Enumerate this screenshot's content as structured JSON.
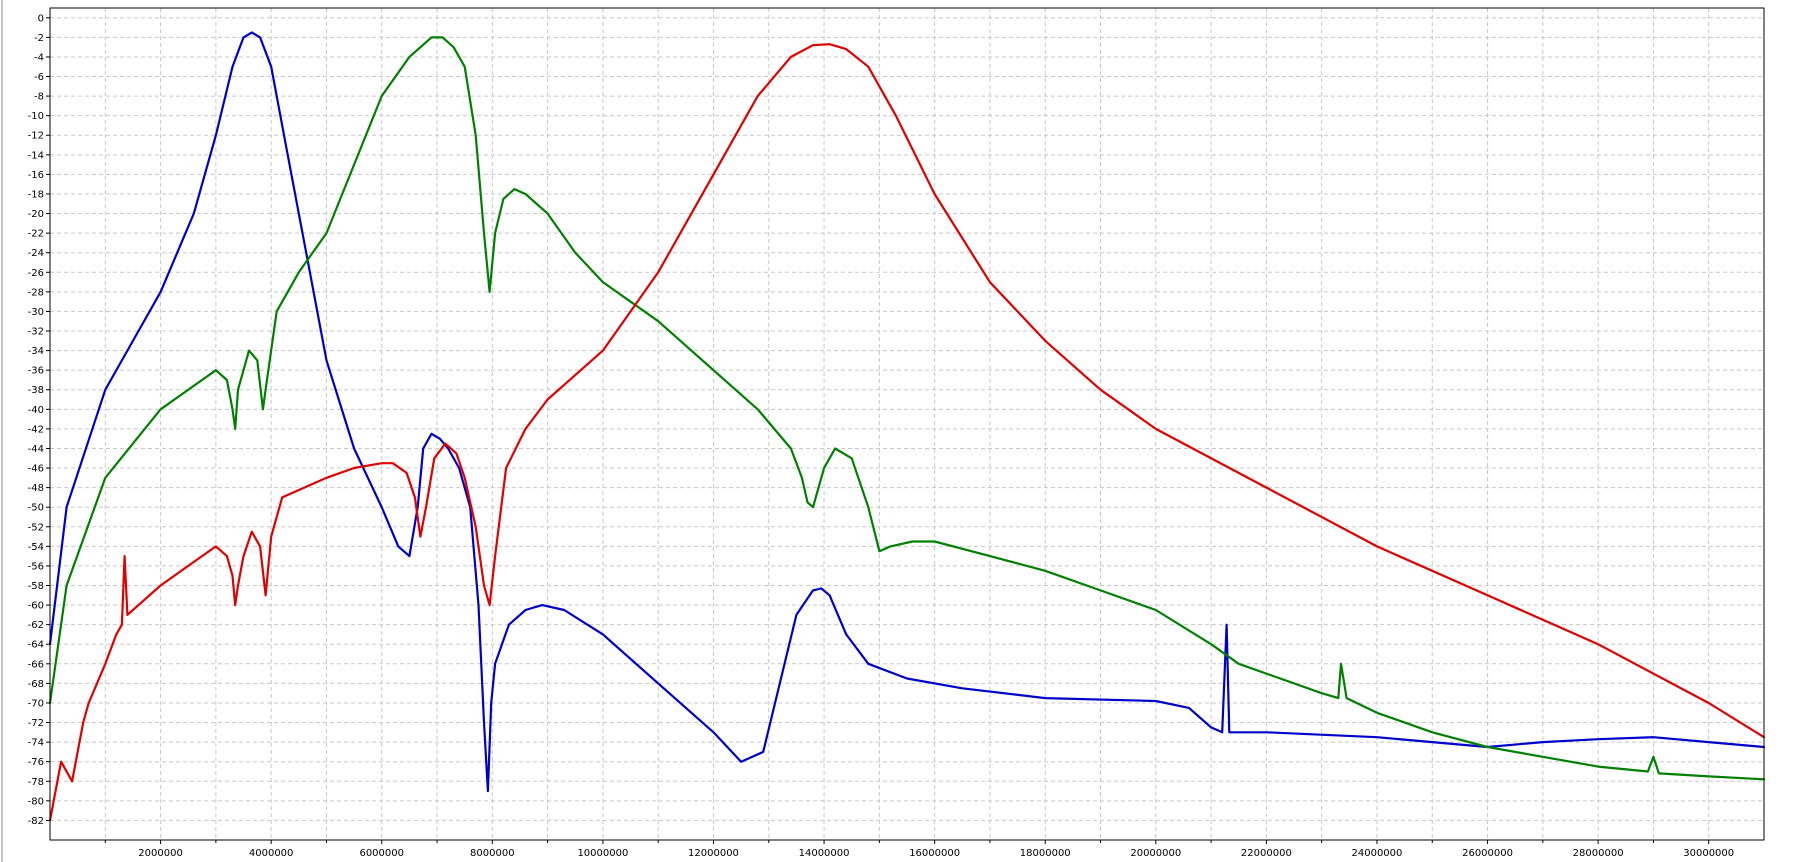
{
  "chart_data": {
    "type": "line",
    "title": "",
    "xlabel": "",
    "ylabel": "",
    "xlim": [
      0,
      31000000
    ],
    "ylim": [
      -84,
      1
    ],
    "grid": true,
    "x_ticks": [
      2000000,
      4000000,
      6000000,
      8000000,
      10000000,
      12000000,
      14000000,
      16000000,
      18000000,
      20000000,
      22000000,
      24000000,
      26000000,
      28000000,
      30000000
    ],
    "x_tick_labels": [
      "2000000",
      "4000000",
      "6000000",
      "8000000",
      "10000000",
      "12000000",
      "14000000",
      "16000000",
      "18000000",
      "20000000",
      "22000000",
      "24000000",
      "26000000",
      "28000000",
      "30000000"
    ],
    "y_ticks": [
      0,
      -2,
      -4,
      -6,
      -8,
      -10,
      -12,
      -14,
      -16,
      -18,
      -20,
      -22,
      -24,
      -26,
      -28,
      -30,
      -32,
      -34,
      -36,
      -38,
      -40,
      -42,
      -44,
      -46,
      -48,
      -50,
      -52,
      -54,
      -56,
      -58,
      -60,
      -62,
      -64,
      -66,
      -68,
      -70,
      -72,
      -74,
      -76,
      -78,
      -80,
      -82
    ],
    "y_tick_labels": [
      "0",
      "-2",
      "-4",
      "-6",
      "-8",
      "-10",
      "-12",
      "-14",
      "-16",
      "-18",
      "-20",
      "-22",
      "-24",
      "-26",
      "-28",
      "-30",
      "-32",
      "-34",
      "-36",
      "-38",
      "-40",
      "-42",
      "-44",
      "-46",
      "-48",
      "-50",
      "-52",
      "-54",
      "-56",
      "-58",
      "-60",
      "-62",
      "-64",
      "-66",
      "-68",
      "-70",
      "-72",
      "-74",
      "-76",
      "-78",
      "-80",
      "-82"
    ],
    "series": [
      {
        "color": "#0000cc",
        "x": [
          0,
          300000,
          1000000,
          2000000,
          2600000,
          3000000,
          3300000,
          3500000,
          3650000,
          3800000,
          4000000,
          4300000,
          4700000,
          5000000,
          5500000,
          6000000,
          6300000,
          6500000,
          6650000,
          6750000,
          6900000,
          7050000,
          7200000,
          7400000,
          7600000,
          7750000,
          7850000,
          7920000,
          7980000,
          8050000,
          8300000,
          8600000,
          8900000,
          9300000,
          10000000,
          11000000,
          12000000,
          12500000,
          12900000,
          13200000,
          13500000,
          13800000,
          13950000,
          14100000,
          14400000,
          14800000,
          15500000,
          16500000,
          18000000,
          20000000,
          20600000,
          21000000,
          21200000,
          21280000,
          21330000,
          21400000,
          22000000,
          24000000,
          25000000,
          26000000,
          27000000,
          28000000,
          29000000,
          30000000,
          31000000
        ],
        "y": [
          -64,
          -50,
          -38,
          -28,
          -20,
          -12,
          -5,
          -2,
          -1.5,
          -2,
          -5,
          -14,
          -26,
          -35,
          -44,
          -50,
          -54,
          -55,
          -50,
          -44,
          -42.5,
          -43,
          -44,
          -46,
          -50,
          -60,
          -72,
          -79,
          -70,
          -66,
          -62,
          -60.5,
          -60,
          -60.5,
          -63,
          -68,
          -73,
          -76,
          -75,
          -68,
          -61,
          -58.5,
          -58.3,
          -59,
          -63,
          -66,
          -67.5,
          -68.5,
          -69.5,
          -69.8,
          -70.5,
          -72.5,
          -73,
          -62,
          -73,
          -73,
          -73,
          -73.5,
          -74,
          -74.5,
          -74,
          -73.7,
          -73.5,
          -74,
          -74.5
        ]
      },
      {
        "color": "#008000",
        "x": [
          0,
          300000,
          1000000,
          2000000,
          3000000,
          3200000,
          3300000,
          3350000,
          3400000,
          3600000,
          3750000,
          3850000,
          3900000,
          4100000,
          4500000,
          5000000,
          5500000,
          6000000,
          6500000,
          6900000,
          7100000,
          7300000,
          7500000,
          7700000,
          7850000,
          7950000,
          8050000,
          8200000,
          8400000,
          8600000,
          9000000,
          9500000,
          10000000,
          11000000,
          12000000,
          12800000,
          13400000,
          13600000,
          13700000,
          13800000,
          14000000,
          14200000,
          14500000,
          14800000,
          15000000,
          15200000,
          15600000,
          16000000,
          17000000,
          18000000,
          19000000,
          20000000,
          21000000,
          21500000,
          22000000,
          22500000,
          23000000,
          23300000,
          23350000,
          23450000,
          24000000,
          25000000,
          26000000,
          27000000,
          28000000,
          28900000,
          29000000,
          29100000,
          30000000,
          31000000
        ],
        "y": [
          -70,
          -58,
          -47,
          -40,
          -36,
          -37,
          -40,
          -42,
          -38,
          -34,
          -35,
          -40,
          -38,
          -30,
          -26,
          -22,
          -15,
          -8,
          -4,
          -2,
          -2,
          -3,
          -5,
          -12,
          -22,
          -28,
          -22,
          -18.5,
          -17.5,
          -18,
          -20,
          -24,
          -27,
          -31,
          -36,
          -40,
          -44,
          -47,
          -49.5,
          -50,
          -46,
          -44,
          -45,
          -50,
          -54.5,
          -54,
          -53.5,
          -53.5,
          -55,
          -56.5,
          -58.5,
          -60.5,
          -64,
          -66,
          -67,
          -68,
          -69,
          -69.5,
          -66,
          -69.5,
          -71,
          -73,
          -74.5,
          -75.5,
          -76.5,
          -77,
          -75.5,
          -77.2,
          -77.5,
          -77.8
        ]
      },
      {
        "color": "#e00000",
        "x": [
          0,
          200000,
          400000,
          600000,
          700000,
          1000000,
          1200000,
          1300000,
          1350000,
          1400000,
          1600000,
          2000000,
          2500000,
          3000000,
          3200000,
          3300000,
          3350000,
          3400000,
          3500000,
          3650000,
          3800000,
          3900000,
          4000000,
          4200000,
          4600000,
          5000000,
          5500000,
          6000000,
          6200000,
          6450000,
          6600000,
          6700000,
          6800000,
          6950000,
          7150000,
          7350000,
          7500000,
          7700000,
          7850000,
          7950000,
          8050000,
          8250000,
          8600000,
          9000000,
          10000000,
          11000000,
          12000000,
          12800000,
          13400000,
          13800000,
          14100000,
          14400000,
          14800000,
          15300000,
          16000000,
          17000000,
          18000000,
          19000000,
          20000000,
          22000000,
          24000000,
          26000000,
          28000000,
          30000000,
          31000000
        ],
        "y": [
          -82,
          -76,
          -78,
          -72,
          -70,
          -66,
          -63,
          -62,
          -55,
          -61,
          -60,
          -58,
          -56,
          -54,
          -55,
          -57,
          -60,
          -58,
          -55,
          -52.5,
          -54,
          -59,
          -53,
          -49,
          -48,
          -47,
          -46,
          -45.5,
          -45.5,
          -46.5,
          -49,
          -53,
          -50,
          -45,
          -43.5,
          -44.5,
          -47,
          -52,
          -58,
          -60,
          -55,
          -46,
          -42,
          -39,
          -34,
          -26,
          -16,
          -8,
          -4,
          -2.8,
          -2.7,
          -3.2,
          -5,
          -10,
          -18,
          -27,
          -33,
          -38,
          -42,
          -48,
          -54,
          -59,
          -64,
          -70,
          -73.5
        ]
      }
    ]
  }
}
